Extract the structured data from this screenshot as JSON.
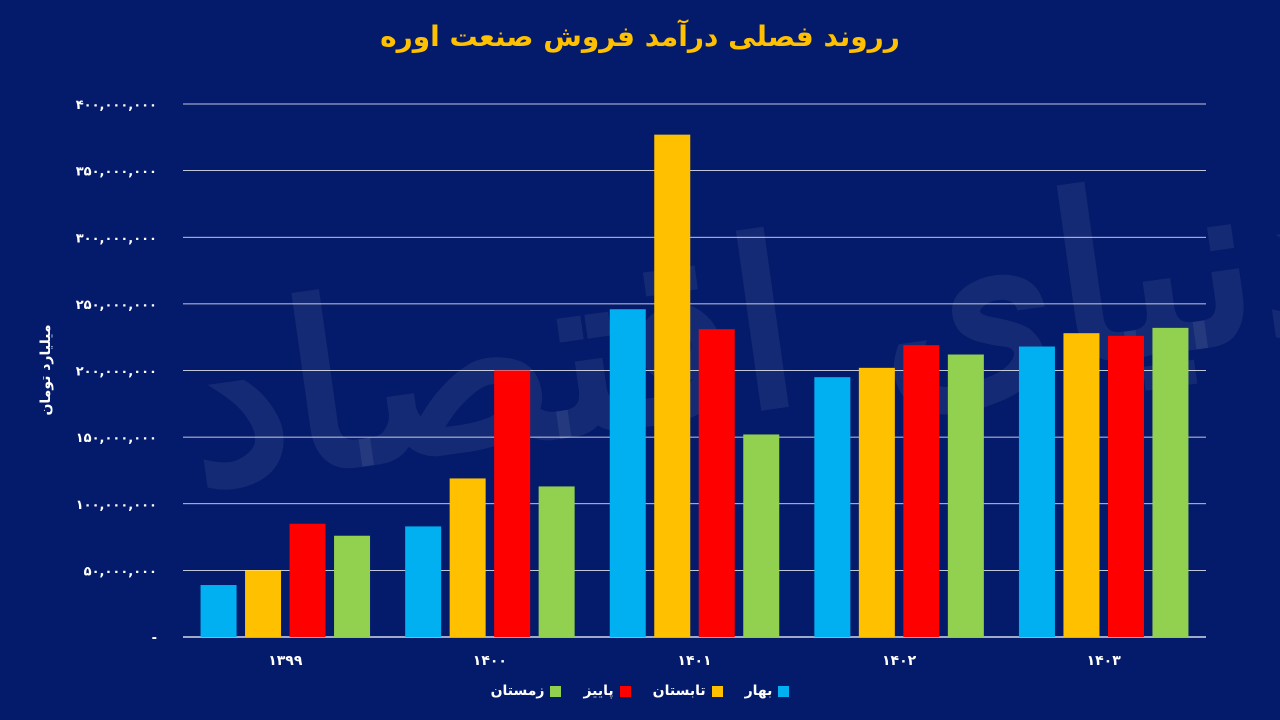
{
  "chart_data": {
    "type": "bar",
    "title": "رروند فصلی درآمد فروش صنعت اوره",
    "ylabel": "میلیارد تومان",
    "xlabel": "",
    "ylim": [
      0,
      400000000
    ],
    "yticks": [
      "-",
      "۵۰,۰۰۰,۰۰۰",
      "۱۰۰,۰۰۰,۰۰۰",
      "۱۵۰,۰۰۰,۰۰۰",
      "۲۰۰,۰۰۰,۰۰۰",
      "۲۵۰,۰۰۰,۰۰۰",
      "۳۰۰,۰۰۰,۰۰۰",
      "۳۵۰,۰۰۰,۰۰۰",
      "۴۰۰,۰۰۰,۰۰۰"
    ],
    "ytick_values": [
      0,
      50000000,
      100000000,
      150000000,
      200000000,
      250000000,
      300000000,
      350000000,
      400000000
    ],
    "grid": true,
    "legend_position": "bottom",
    "categories": [
      "۱۳۹۹",
      "۱۴۰۰",
      "۱۴۰۱",
      "۱۴۰۲",
      "۱۴۰۳"
    ],
    "series": [
      {
        "name": "بهار",
        "color": "#00b0f0",
        "values": [
          39000000,
          83000000,
          246000000,
          195000000,
          218000000
        ]
      },
      {
        "name": "تابستان",
        "color": "#ffc000",
        "values": [
          50000000,
          119000000,
          377000000,
          202000000,
          228000000
        ]
      },
      {
        "name": "پاییز",
        "color": "#ff0000",
        "values": [
          85000000,
          200000000,
          231000000,
          219000000,
          226000000
        ]
      },
      {
        "name": "زمستان",
        "color": "#92d050",
        "values": [
          76000000,
          113000000,
          152000000,
          212000000,
          232000000
        ]
      }
    ]
  },
  "watermark": "دنیای اقتصاد"
}
